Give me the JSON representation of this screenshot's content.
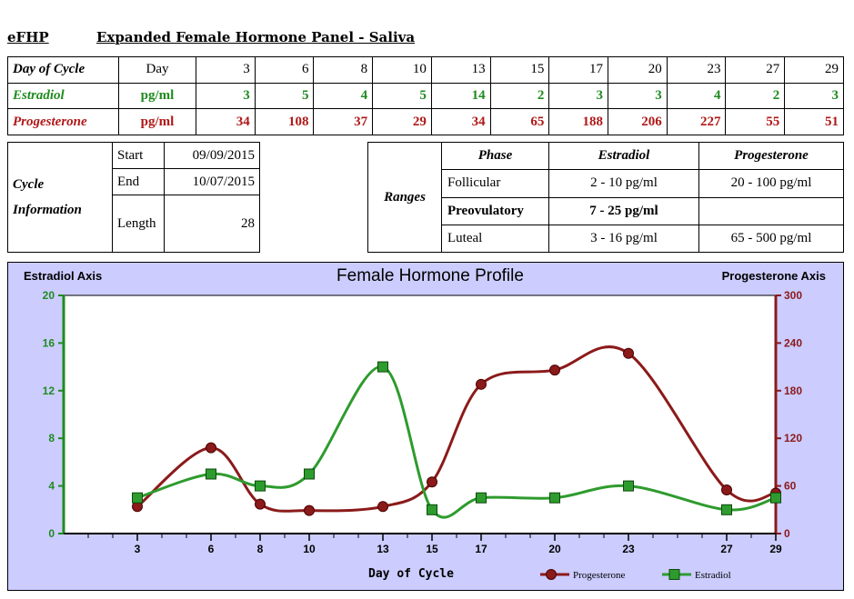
{
  "header": {
    "code": "eFHP",
    "title": "Expanded Female Hormone Panel - Saliva"
  },
  "values_table": {
    "day_row": {
      "label": "Day of Cycle",
      "unit": "Day",
      "values": [
        3,
        6,
        8,
        10,
        13,
        15,
        17,
        20,
        23,
        27,
        29
      ]
    },
    "estradiol_row": {
      "label": "Estradiol",
      "unit": "pg/ml",
      "values": [
        3,
        5,
        4,
        5,
        14,
        2,
        3,
        3,
        4,
        2,
        3
      ]
    },
    "progesterone_row": {
      "label": "Progesterone",
      "unit": "pg/ml",
      "values": [
        34,
        108,
        37,
        29,
        34,
        65,
        188,
        206,
        227,
        55,
        51
      ]
    }
  },
  "cycle_info": {
    "label_line1": "Cycle",
    "label_line2": "Information",
    "start_label": "Start",
    "start_value": "09/09/2015",
    "end_label": "End",
    "end_value": "10/07/2015",
    "length_label": "Length",
    "length_value": "28"
  },
  "ranges": {
    "label": "Ranges",
    "headers": [
      "Phase",
      "Estradiol",
      "Progesterone"
    ],
    "rows": [
      {
        "phase": "Follicular",
        "estradiol": "2 - 10 pg/ml",
        "progesterone": "20 - 100 pg/ml"
      },
      {
        "phase": "Preovulatory",
        "estradiol": "7 - 25 pg/ml",
        "progesterone": ""
      },
      {
        "phase": "Luteal",
        "estradiol": "3 - 16 pg/ml",
        "progesterone": "65 - 500 pg/ml"
      }
    ]
  },
  "chart_data": {
    "type": "line",
    "title": "Female Hormone Profile",
    "xlabel": "Day of Cycle",
    "y_left_label": "Estradiol Axis",
    "y_right_label": "Progesterone Axis",
    "x": [
      3,
      6,
      8,
      10,
      13,
      15,
      17,
      20,
      23,
      27,
      29
    ],
    "xlim": [
      0,
      29
    ],
    "y_left_lim": [
      0,
      20
    ],
    "y_left_ticks": [
      0,
      4,
      8,
      12,
      16,
      20
    ],
    "y_right_lim": [
      0,
      300
    ],
    "y_right_ticks": [
      0,
      60,
      120,
      180,
      240,
      300
    ],
    "series": [
      {
        "name": "Progesterone",
        "axis": "right",
        "values": [
          34,
          108,
          37,
          29,
          34,
          65,
          188,
          206,
          227,
          55,
          51
        ],
        "color": "#8b1a1a",
        "marker": "circle"
      },
      {
        "name": "Estradiol",
        "axis": "left",
        "values": [
          3,
          5,
          4,
          5,
          14,
          2,
          3,
          3,
          4,
          2,
          3
        ],
        "color": "#2e9b2e",
        "marker": "square"
      }
    ],
    "legend_position": "bottom-right",
    "colors": {
      "background": "#ccccff",
      "plot_bg": "#ffffff",
      "left_axis": "#1f8b1f",
      "right_axis": "#8b1a1a"
    }
  }
}
